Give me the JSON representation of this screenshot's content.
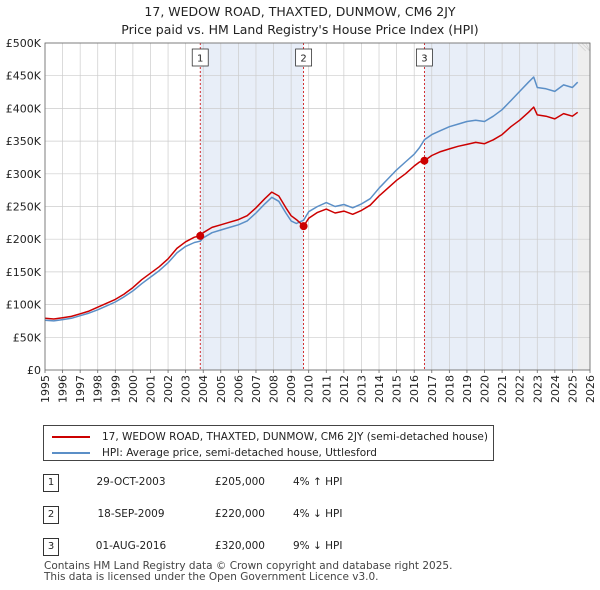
{
  "title": {
    "line1": "17, WEDOW ROAD, THAXTED, DUNMOW, CM6 2JY",
    "line2": "Price paid vs. HM Land Registry's House Price Index (HPI)"
  },
  "chart_data": {
    "type": "line",
    "xlim": [
      1995,
      2026
    ],
    "ylim": [
      0,
      500000
    ],
    "y_ticks": [
      0,
      50000,
      100000,
      150000,
      200000,
      250000,
      300000,
      350000,
      400000,
      450000,
      500000
    ],
    "y_tick_labels": [
      "£0",
      "£50K",
      "£100K",
      "£150K",
      "£200K",
      "£250K",
      "£300K",
      "£350K",
      "£400K",
      "£450K",
      "£500K"
    ],
    "x_ticks": [
      1995,
      1996,
      1997,
      1998,
      1999,
      2000,
      2001,
      2002,
      2003,
      2004,
      2005,
      2006,
      2007,
      2008,
      2009,
      2010,
      2011,
      2012,
      2013,
      2014,
      2015,
      2016,
      2017,
      2018,
      2019,
      2020,
      2021,
      2022,
      2023,
      2024,
      2025,
      2026
    ],
    "x_tick_labels": [
      "1995",
      "1996",
      "1997",
      "1998",
      "1999",
      "2000",
      "2001",
      "2002",
      "2003",
      "2004",
      "2005",
      "2006",
      "2007",
      "2008",
      "2009",
      "2010",
      "2011",
      "2012",
      "2013",
      "2014",
      "2015",
      "2016",
      "2017",
      "2018",
      "2019",
      "2020",
      "2021",
      "2022",
      "2023",
      "2024",
      "2025",
      "2026"
    ],
    "grid": true,
    "shaded_periods": [
      [
        2003.83,
        2009.71
      ],
      [
        2016.58,
        2025.3
      ]
    ],
    "forecast_start": 2025.3,
    "series": [
      {
        "name": "17, WEDOW ROAD, THAXTED, DUNMOW, CM6 2JY (semi-detached house)",
        "color": "#cc0000",
        "x": [
          1995,
          1995.5,
          1996,
          1996.5,
          1997,
          1997.5,
          1998,
          1998.5,
          1999,
          1999.5,
          2000,
          2000.5,
          2001,
          2001.5,
          2002,
          2002.5,
          2003,
          2003.5,
          2003.83,
          2004,
          2004.5,
          2005,
          2005.5,
          2006,
          2006.5,
          2007,
          2007.5,
          2007.9,
          2008.3,
          2008.7,
          2009,
          2009.3,
          2009.71,
          2010,
          2010.5,
          2011,
          2011.5,
          2012,
          2012.5,
          2013,
          2013.5,
          2014,
          2014.5,
          2015,
          2015.5,
          2016,
          2016.3,
          2016.58,
          2017,
          2017.5,
          2018,
          2018.5,
          2019,
          2019.5,
          2020,
          2020.5,
          2021,
          2021.5,
          2022,
          2022.5,
          2022.8,
          2023,
          2023.5,
          2024,
          2024.5,
          2025,
          2025.3
        ],
        "values": [
          79000,
          78000,
          80000,
          82000,
          86000,
          90000,
          96000,
          102000,
          108000,
          116000,
          126000,
          138000,
          148000,
          158000,
          170000,
          186000,
          196000,
          203000,
          205000,
          210000,
          218000,
          222000,
          226000,
          230000,
          236000,
          248000,
          262000,
          272000,
          266000,
          248000,
          236000,
          230000,
          220000,
          232000,
          241000,
          246000,
          240000,
          243000,
          238000,
          244000,
          252000,
          266000,
          278000,
          290000,
          300000,
          312000,
          318000,
          320000,
          328000,
          334000,
          338000,
          342000,
          345000,
          348000,
          346000,
          352000,
          360000,
          372000,
          382000,
          394000,
          402000,
          390000,
          388000,
          384000,
          392000,
          388000,
          394000
        ]
      },
      {
        "name": "HPI: Average price, semi-detached house, Uttlesford",
        "color": "#5b8fc7",
        "x": [
          1995,
          1995.5,
          1996,
          1996.5,
          1997,
          1997.5,
          1998,
          1998.5,
          1999,
          1999.5,
          2000,
          2000.5,
          2001,
          2001.5,
          2002,
          2002.5,
          2003,
          2003.5,
          2003.83,
          2004,
          2004.5,
          2005,
          2005.5,
          2006,
          2006.5,
          2007,
          2007.5,
          2007.9,
          2008.3,
          2008.7,
          2009,
          2009.3,
          2009.71,
          2010,
          2010.5,
          2011,
          2011.5,
          2012,
          2012.5,
          2013,
          2013.5,
          2014,
          2014.5,
          2015,
          2015.5,
          2016,
          2016.3,
          2016.58,
          2017,
          2017.5,
          2018,
          2018.5,
          2019,
          2019.5,
          2020,
          2020.5,
          2021,
          2021.5,
          2022,
          2022.5,
          2022.8,
          2023,
          2023.5,
          2024,
          2024.5,
          2025,
          2025.3
        ],
        "values": [
          76000,
          75000,
          77000,
          79000,
          83000,
          87000,
          92000,
          98000,
          104000,
          112000,
          121000,
          132000,
          142000,
          152000,
          164000,
          179000,
          189000,
          195000,
          197000,
          202000,
          210000,
          214000,
          218000,
          222000,
          228000,
          240000,
          254000,
          264000,
          258000,
          240000,
          228000,
          224000,
          229000,
          242000,
          250000,
          256000,
          250000,
          253000,
          248000,
          254000,
          262000,
          278000,
          292000,
          306000,
          318000,
          330000,
          340000,
          352000,
          360000,
          366000,
          372000,
          376000,
          380000,
          382000,
          380000,
          388000,
          398000,
          412000,
          426000,
          440000,
          448000,
          432000,
          430000,
          426000,
          436000,
          432000,
          440000
        ]
      }
    ],
    "markers": [
      {
        "label": "1",
        "x": 2003.83,
        "y": 205000
      },
      {
        "label": "2",
        "x": 2009.71,
        "y": 220000
      },
      {
        "label": "3",
        "x": 2016.58,
        "y": 320000
      }
    ]
  },
  "legend": {
    "price_paid": "17, WEDOW ROAD, THAXTED, DUNMOW, CM6 2JY (semi-detached house)",
    "hpi": "HPI: Average price, semi-detached house, Uttlesford",
    "price_color": "#cc0000",
    "hpi_color": "#5b8fc7"
  },
  "sales": [
    {
      "num": "1",
      "date": "29-OCT-2003",
      "price": "£205,000",
      "hpi": "4% ↑ HPI"
    },
    {
      "num": "2",
      "date": "18-SEP-2009",
      "price": "£220,000",
      "hpi": "4% ↓ HPI"
    },
    {
      "num": "3",
      "date": "01-AUG-2016",
      "price": "£320,000",
      "hpi": "9% ↓ HPI"
    }
  ],
  "footer": {
    "line1": "Contains HM Land Registry data © Crown copyright and database right 2025.",
    "line2": "This data is licensed under the Open Government Licence v3.0."
  },
  "colors": {
    "plot_background": "#ffffff",
    "shaded_background": "#e8eef8",
    "grid": "#cccccc",
    "marker_line": "#cc0000"
  }
}
